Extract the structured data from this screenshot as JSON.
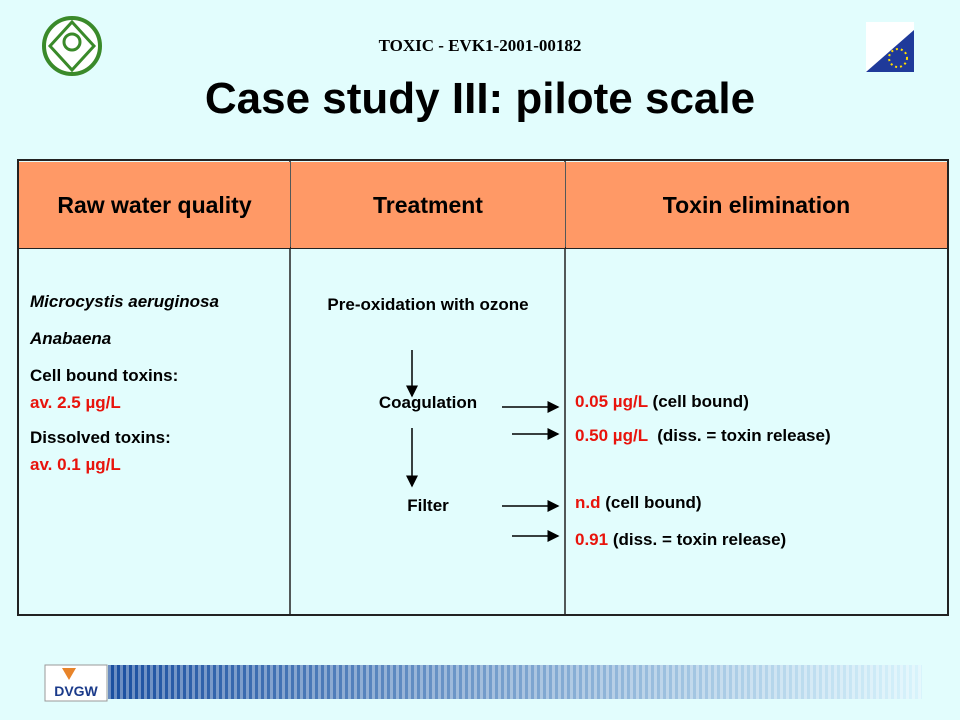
{
  "header": {
    "project": "TOXIC - EVK1-2001-00182",
    "title": "Case study III: pilote scale"
  },
  "table": {
    "headers": [
      "Raw water quality",
      "Treatment",
      "Toxin elimination"
    ],
    "raw_water": {
      "organisms": [
        "Microcystis aeruginosa",
        "Anabaena"
      ],
      "toxins": [
        {
          "label": "Cell bound toxins:",
          "value": "av. 2.5 µg/L"
        },
        {
          "label": "Dissolved toxins:",
          "value": "av. 0.1 µg/L"
        }
      ]
    },
    "treatment": [
      "Pre-oxidation with ozone",
      "Coagulation",
      "Filter"
    ],
    "elimination": [
      {
        "value": "0.05 µg/L",
        "note": "(cell bound)"
      },
      {
        "value": "0.50 µg/L",
        "note": "(diss. = toxin release)"
      },
      {
        "value": "n.d",
        "note": "(cell bound)"
      },
      {
        "value": "0.91",
        "note": "(diss. = toxin release)"
      }
    ]
  },
  "footer": {
    "logo": "DVGW"
  }
}
